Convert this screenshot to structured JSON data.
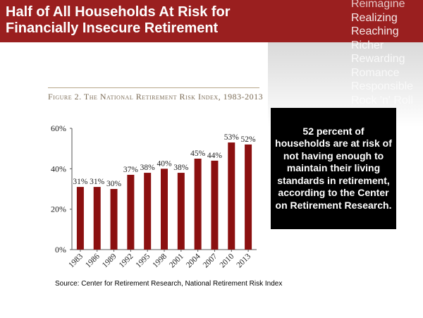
{
  "slide": {
    "title": "Half of All Households At Risk for Financially Insecure Retirement",
    "accent_color": "#9a1f1f",
    "decorative_words": [
      "Reimagine",
      "Realizing",
      "Reaching",
      "Richer",
      "Rewarding",
      "Romance",
      "Responsible",
      "Rock 'n' Roll"
    ],
    "figure_title": "Figure 2. The National Retirement Risk Index, 1983-2013",
    "callout": "52 percent of households are at risk of not having enough to maintain their living standards in retirement, according to the Center on Retirement Research.",
    "source": "Source: Center for Retirement Research, National Retirement Risk Index"
  },
  "chart_data": {
    "type": "bar",
    "title": "Figure 2. The National Retirement Risk Index, 1983-2013",
    "categories": [
      "1983",
      "1986",
      "1989",
      "1992",
      "1995",
      "1998",
      "2001",
      "2004",
      "2007",
      "2010",
      "2013"
    ],
    "values": [
      31,
      31,
      30,
      37,
      38,
      40,
      38,
      45,
      44,
      53,
      52
    ],
    "data_labels": [
      "31%",
      "31%",
      "30%",
      "37%",
      "38%",
      "40%",
      "38%",
      "45%",
      "44%",
      "53%",
      "52%"
    ],
    "yticks": [
      "0%",
      "20%",
      "40%",
      "60%"
    ],
    "ytick_values": [
      0,
      20,
      40,
      60
    ],
    "ylim": [
      0,
      60
    ],
    "bar_color": "#8b1010",
    "grid": false,
    "xlabel": "",
    "ylabel": ""
  }
}
